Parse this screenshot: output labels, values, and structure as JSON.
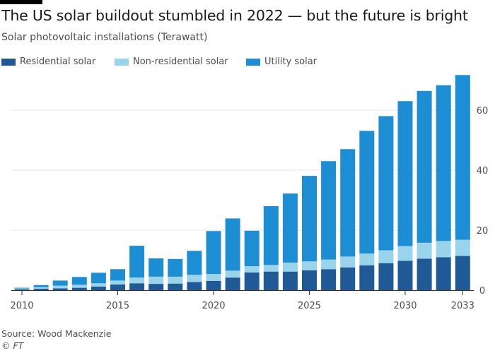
{
  "header": {
    "title": "The US solar buildout stumbled in 2022 — but the future is bright",
    "subtitle": "Solar photovoltaic installations (Terawatt)"
  },
  "footer": {
    "source": "Source: Wood Mackenzie",
    "credit": "© FT"
  },
  "colors": {
    "residential": "#1f5a96",
    "non_residential": "#9ad4ec",
    "utility": "#1e8ed4",
    "grid": "#e6e6e6",
    "axis": "#333333",
    "tick_text": "#4d4d4d"
  },
  "chart_data": {
    "type": "bar",
    "stacked": true,
    "title": "The US solar buildout stumbled in 2022 — but the future is bright",
    "subtitle": "Solar photovoltaic installations (Terawatt)",
    "xlabel": "",
    "ylabel": "",
    "categories": [
      2010,
      2011,
      2012,
      2013,
      2014,
      2015,
      2016,
      2017,
      2018,
      2019,
      2020,
      2021,
      2022,
      2023,
      2024,
      2025,
      2026,
      2027,
      2028,
      2029,
      2030,
      2031,
      2032,
      2033
    ],
    "x_tick_labels": [
      "2010",
      "2015",
      "2020",
      "2025",
      "2030",
      "2033"
    ],
    "x_tick_values": [
      2010,
      2015,
      2020,
      2025,
      2030,
      2033
    ],
    "y_ticks": [
      0,
      20,
      40,
      60
    ],
    "ylim": [
      0,
      72
    ],
    "y_axis_side": "right",
    "grid": true,
    "legend_position": "top-left",
    "series": [
      {
        "name": "Residential solar",
        "values": [
          0.3,
          0.5,
          0.6,
          0.8,
          1.2,
          1.9,
          2.3,
          2.1,
          2.2,
          2.7,
          3.1,
          4.2,
          5.9,
          6.2,
          6.2,
          6.6,
          7.0,
          7.6,
          8.3,
          9.0,
          9.8,
          10.5,
          11.0,
          11.4
        ]
      },
      {
        "name": "Non-residential solar",
        "values": [
          0.3,
          0.5,
          0.9,
          1.0,
          1.1,
          1.3,
          1.9,
          2.4,
          2.3,
          2.4,
          2.3,
          2.3,
          2.1,
          2.2,
          3.0,
          3.0,
          3.2,
          3.6,
          3.9,
          4.3,
          4.9,
          5.3,
          5.4,
          5.4
        ]
      },
      {
        "name": "Utility solar",
        "values": [
          0.2,
          0.7,
          1.7,
          2.6,
          3.5,
          3.8,
          10.6,
          6.1,
          5.9,
          8.0,
          14.3,
          17.4,
          11.8,
          19.6,
          23.0,
          28.5,
          32.8,
          35.8,
          40.9,
          44.7,
          48.3,
          50.6,
          51.9,
          54.9
        ]
      }
    ]
  }
}
